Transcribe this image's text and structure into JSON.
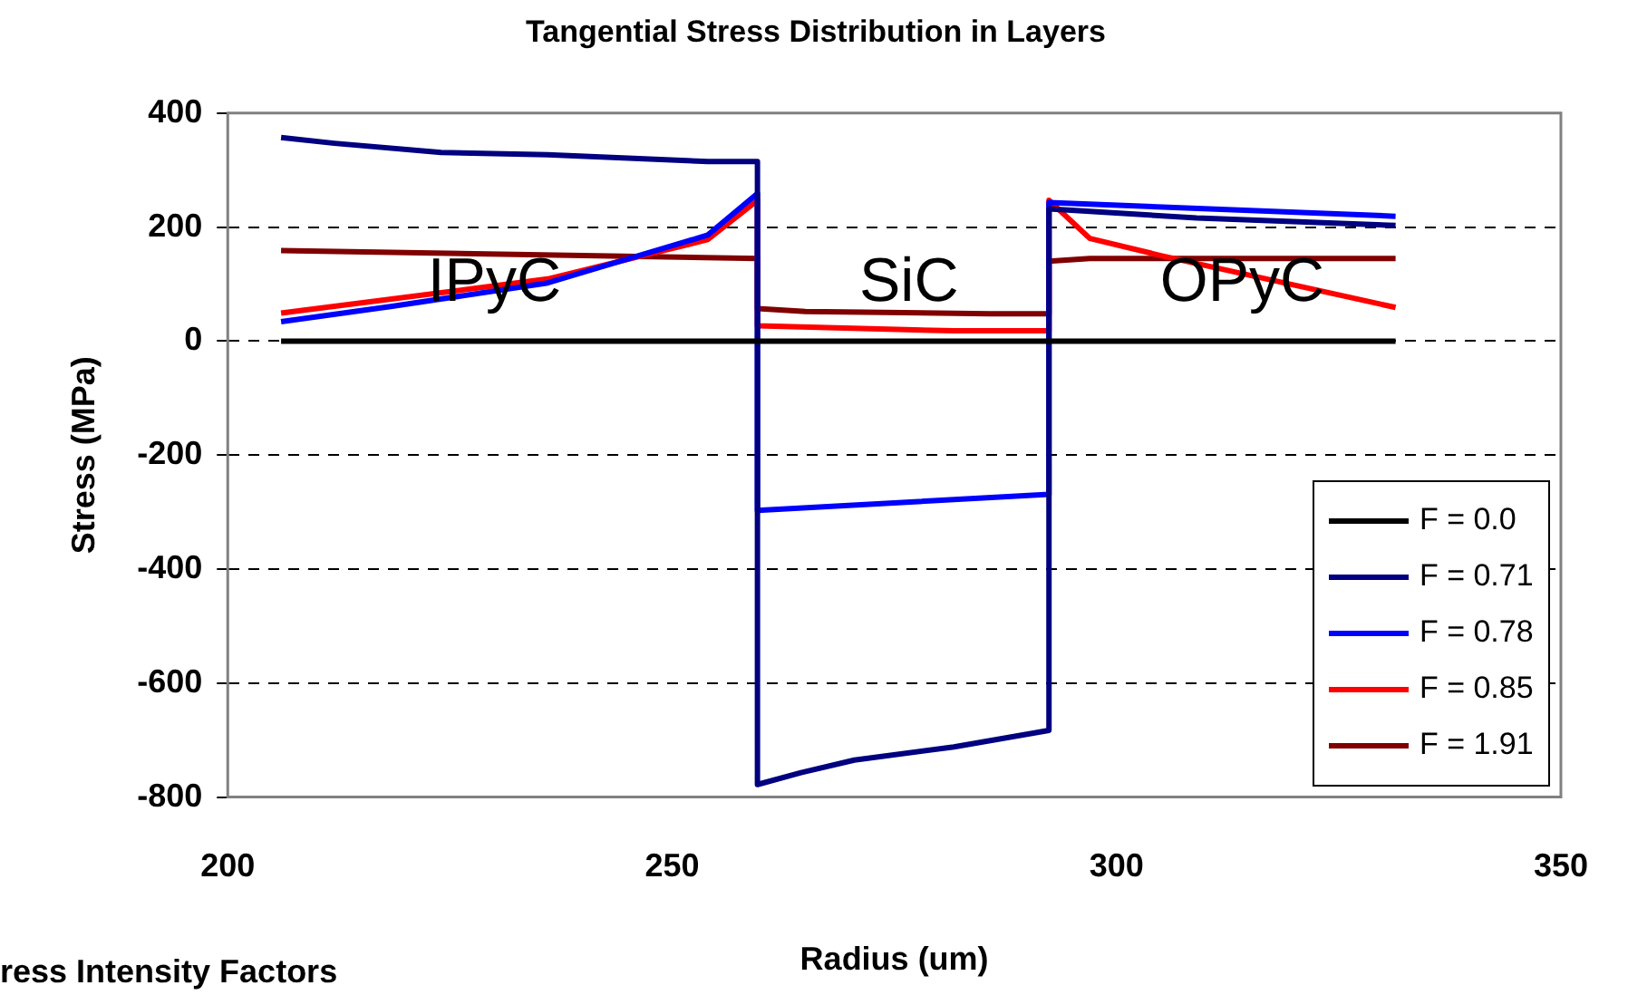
{
  "chart_data": {
    "type": "line",
    "title": "Tangential Stress Distribution in Layers",
    "xlabel": "Radius (um)",
    "ylabel": "Stress (MPa)",
    "xlim": [
      200,
      350
    ],
    "xticks": [
      200,
      250,
      300,
      350
    ],
    "ylim": [
      -800,
      400
    ],
    "yticks": [
      -800,
      -600,
      -400,
      -200,
      0,
      200,
      400
    ],
    "grid": "y",
    "legend": "bottom right",
    "marker": "none",
    "line_style": "solid",
    "annotations": [
      "IPyC",
      "SiC",
      "OPyC",
      "ress Intensity Factors"
    ],
    "series": [
      {
        "name": "F = 0.0",
        "color": "#000000",
        "x": [
          206,
          331.4
        ],
        "values": [
          0,
          0
        ]
      },
      {
        "name": "F = 0.71",
        "color": "#000080",
        "x": [
          206,
          212,
          224,
          236,
          254,
          259.6,
          259.6,
          264.5,
          270.5,
          281.7,
          292.4,
          292.4,
          309,
          331.4
        ],
        "values": [
          357,
          347,
          331,
          327,
          315,
          315,
          -778,
          -757,
          -735,
          -712,
          -683,
          232,
          216,
          203
        ]
      },
      {
        "name": "F = 0.78",
        "color": "#0000ff",
        "x": [
          206,
          218.5,
          236,
          254,
          259.6,
          259.6,
          292.4,
          292.4,
          331.4
        ],
        "values": [
          34,
          61,
          102,
          186,
          259,
          -297,
          -269,
          243,
          219
        ]
      },
      {
        "name": "F = 0.85",
        "color": "#ff0000",
        "x": [
          206,
          236,
          254,
          259.6,
          259.6,
          281.7,
          292.4,
          292.4,
          297,
          305,
          331.4
        ],
        "values": [
          49,
          109,
          178,
          247,
          27,
          18,
          18,
          247,
          180,
          150,
          59
        ]
      },
      {
        "name": "F = 1.91",
        "color": "#800000",
        "x": [
          206,
          259.6,
          259.6,
          265,
          285.7,
          292.4,
          292.4,
          297,
          331.4
        ],
        "values": [
          159,
          145,
          57,
          52,
          48,
          48,
          140,
          145,
          145
        ]
      }
    ]
  }
}
